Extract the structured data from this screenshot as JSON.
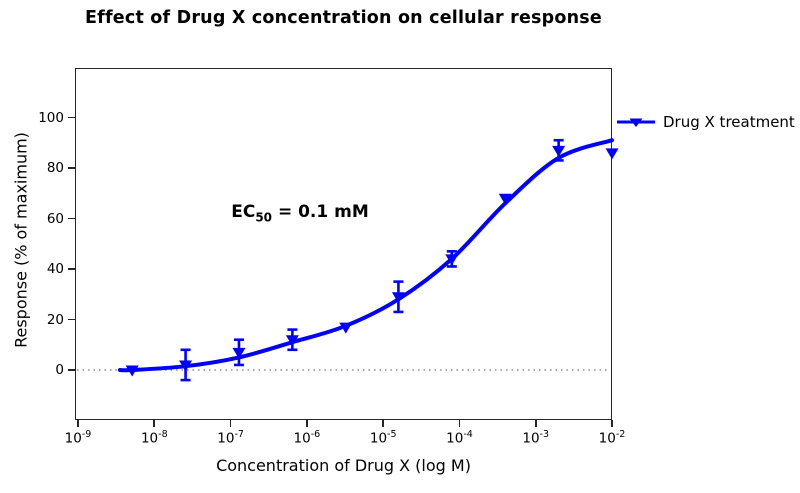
{
  "title": "Effect of Drug X concentration on cellular response",
  "annotation": {
    "prefix": "EC",
    "sub": "50",
    "suffix": " = 0.1 mM",
    "text": "EC50 = 0.1 mM"
  },
  "legend": {
    "label": "Drug X treatment",
    "position": "right-outside",
    "marker": "triangle-down-icon"
  },
  "colors": {
    "series": "#0000ff",
    "axis": "#262626",
    "baseline": "#8c8c8c",
    "text": "#000000",
    "background": "#ffffff"
  },
  "chart_data": {
    "type": "scatter",
    "subtype": "dose-response with sigmoidal fit",
    "title": "Effect of Drug X concentration on cellular response",
    "xlabel": "Concentration of Drug X (log M)",
    "ylabel": "Response (% of maximum)",
    "x_scale": "log10",
    "xlim_log10": [
      -9.04,
      -2.0
    ],
    "ylim": [
      -20,
      120
    ],
    "xtick_exponents": [
      -9,
      -8,
      -7,
      -6,
      -5,
      -4,
      -3,
      -2
    ],
    "yticks": [
      0,
      20,
      40,
      60,
      80,
      100
    ],
    "grid": false,
    "baseline": {
      "y": 0,
      "style": "dotted"
    },
    "series": [
      {
        "name": "Drug X treatment",
        "color": "#0000ff",
        "marker": "triangle-down",
        "points": [
          {
            "log10_conc": -8.29,
            "mean": 0,
            "err": 0
          },
          {
            "log10_conc": -7.59,
            "mean": 2,
            "err": 6
          },
          {
            "log10_conc": -6.89,
            "mean": 7,
            "err": 5
          },
          {
            "log10_conc": -6.19,
            "mean": 12,
            "err": 4
          },
          {
            "log10_conc": -5.49,
            "mean": 17,
            "err": 0
          },
          {
            "log10_conc": -4.8,
            "mean": 29,
            "err": 6
          },
          {
            "log10_conc": -4.1,
            "mean": 44,
            "err": 3
          },
          {
            "log10_conc": -3.4,
            "mean": 68,
            "err": 0
          },
          {
            "log10_conc": -2.7,
            "mean": 87,
            "err": 4
          },
          {
            "log10_conc": -2.0,
            "mean": 86,
            "err": 0
          }
        ]
      }
    ],
    "fit_curve": {
      "samples": [
        [
          -8.45,
          0
        ],
        [
          -8.29,
          0
        ],
        [
          -7.59,
          1.5
        ],
        [
          -6.89,
          5
        ],
        [
          -6.19,
          11
        ],
        [
          -5.49,
          17.5
        ],
        [
          -4.8,
          28
        ],
        [
          -4.1,
          44
        ],
        [
          -3.4,
          66
        ],
        [
          -2.7,
          84
        ],
        [
          -2.0,
          91
        ]
      ]
    }
  }
}
